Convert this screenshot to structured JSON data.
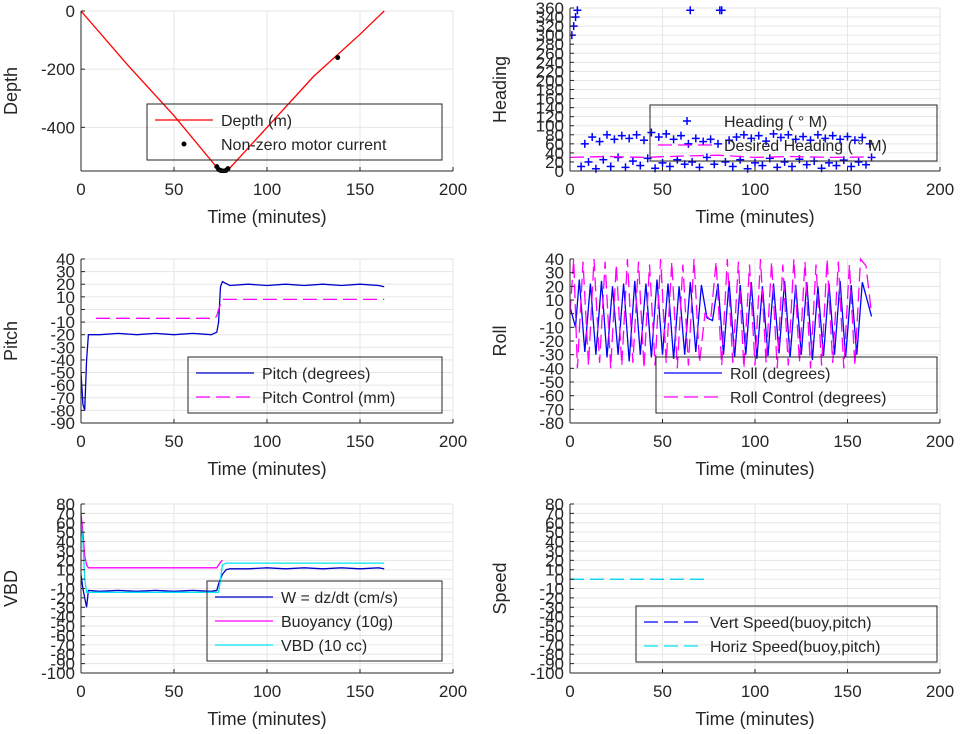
{
  "chart_data": [
    {
      "type": "line",
      "xlabel": "Time (minutes)",
      "ylabel": "Depth",
      "xlim": [
        0,
        200
      ],
      "ylim": [
        -550,
        0
      ],
      "xticks": [
        0,
        50,
        100,
        150,
        200
      ],
      "yticks": [
        -400,
        -200,
        0
      ],
      "grid": true,
      "legend_position": "bottom-right",
      "series": [
        {
          "name": "Depth (m)",
          "style": "solid",
          "color": "#ff0000",
          "x": [
            0,
            25,
            50,
            74,
            77,
            80,
            100,
            125,
            150,
            163
          ],
          "y": [
            0,
            -185,
            -360,
            -545,
            -548,
            -540,
            -400,
            -225,
            -80,
            0
          ]
        },
        {
          "name": "Non-zero motor current",
          "style": "dots",
          "color": "#000000",
          "x": [
            73,
            74,
            75,
            76,
            77,
            78,
            79,
            138
          ],
          "y": [
            -535,
            -545,
            -548,
            -550,
            -550,
            -548,
            -542,
            -160
          ]
        }
      ]
    },
    {
      "type": "line",
      "xlabel": "Time (minutes)",
      "ylabel": "Heading",
      "xlim": [
        0,
        200
      ],
      "ylim": [
        0,
        360
      ],
      "xticks": [
        0,
        50,
        100,
        150,
        200
      ],
      "yticks": [
        0,
        20,
        40,
        60,
        80,
        100,
        120,
        140,
        160,
        180,
        200,
        220,
        240,
        260,
        280,
        300,
        320,
        340,
        360
      ],
      "grid": true,
      "legend_position": "right",
      "series": [
        {
          "name": "Heading (   ° M)",
          "style": "plus",
          "color": "#0000ff",
          "x": [
            1,
            2,
            3,
            4,
            6,
            8,
            10,
            12,
            14,
            16,
            18,
            20,
            22,
            24,
            26,
            28,
            30,
            32,
            34,
            36,
            38,
            40,
            42,
            44,
            46,
            48,
            50,
            52,
            54,
            56,
            58,
            60,
            62,
            64,
            65,
            66,
            68,
            70,
            72,
            74,
            76,
            78,
            80,
            81,
            82,
            84,
            86,
            88,
            90,
            92,
            94,
            96,
            98,
            100,
            102,
            104,
            106,
            108,
            110,
            112,
            114,
            116,
            118,
            120,
            122,
            124,
            126,
            128,
            130,
            132,
            134,
            136,
            138,
            140,
            142,
            144,
            146,
            148,
            150,
            152,
            154,
            156,
            158,
            160,
            162,
            163
          ],
          "y": [
            300,
            320,
            340,
            355,
            10,
            60,
            20,
            75,
            5,
            65,
            25,
            80,
            10,
            70,
            30,
            78,
            8,
            72,
            22,
            80,
            12,
            68,
            28,
            85,
            6,
            75,
            18,
            82,
            10,
            70,
            25,
            78,
            15,
            60,
            355,
            20,
            72,
            8,
            65,
            30,
            70,
            15,
            60,
            355,
            355,
            20,
            68,
            10,
            75,
            25,
            80,
            5,
            72,
            18,
            78,
            12,
            66,
            28,
            82,
            8,
            74,
            20,
            80,
            10,
            70,
            26,
            76,
            14,
            68,
            22,
            80,
            6,
            72,
            18,
            78,
            12,
            70,
            24,
            76,
            10,
            68,
            20,
            74,
            14,
            60,
            30
          ]
        },
        {
          "name": "Desired Heading (   ° M)",
          "style": "dashed",
          "color": "#ff00ff",
          "x": [
            0,
            20,
            40,
            60,
            80,
            100,
            120,
            140,
            160,
            163
          ],
          "y": [
            30,
            32,
            30,
            33,
            35,
            30,
            32,
            30,
            31,
            30
          ]
        }
      ]
    },
    {
      "type": "line",
      "xlabel": "Time (minutes)",
      "ylabel": "Pitch",
      "xlim": [
        0,
        200
      ],
      "ylim": [
        -90,
        40
      ],
      "xticks": [
        0,
        50,
        100,
        150,
        200
      ],
      "yticks": [
        -90,
        -80,
        -70,
        -60,
        -50,
        -40,
        -30,
        -20,
        -10,
        0,
        10,
        20,
        30,
        40
      ],
      "grid": true,
      "legend_position": "bottom-right",
      "series": [
        {
          "name": "Pitch (degrees)",
          "style": "solid",
          "color": "#0000cc",
          "x": [
            0,
            1,
            2,
            3,
            4,
            10,
            20,
            30,
            40,
            50,
            60,
            70,
            73,
            74,
            75,
            76,
            80,
            90,
            100,
            110,
            120,
            130,
            140,
            150,
            160,
            163
          ],
          "y": [
            -50,
            -75,
            -80,
            -40,
            -20,
            -20,
            -19,
            -20,
            -19,
            -20,
            -19,
            -20,
            -18,
            -10,
            18,
            22,
            19,
            20,
            19,
            20,
            19,
            20,
            19,
            20,
            19,
            18
          ]
        },
        {
          "name": "Pitch Control (mm)",
          "style": "dashed",
          "color": "#ff00ff",
          "x": [
            8,
            72,
            73,
            74,
            76,
            163
          ],
          "y": [
            -7,
            -7,
            -5,
            0,
            8,
            8
          ]
        }
      ]
    },
    {
      "type": "line",
      "xlabel": "Time (minutes)",
      "ylabel": "Roll",
      "xlim": [
        0,
        200
      ],
      "ylim": [
        -80,
        40
      ],
      "xticks": [
        0,
        50,
        100,
        150,
        200
      ],
      "yticks": [
        -80,
        -70,
        -60,
        -50,
        -40,
        -30,
        -20,
        -10,
        0,
        10,
        20,
        30,
        40
      ],
      "grid": true,
      "legend_position": "bottom-right",
      "series": [
        {
          "name": "Roll (degrees)",
          "style": "solid",
          "color": "#0000ff",
          "x": [
            0,
            3,
            5,
            8,
            11,
            14,
            17,
            20,
            23,
            26,
            29,
            32,
            35,
            38,
            41,
            44,
            47,
            50,
            53,
            56,
            59,
            62,
            65,
            68,
            71,
            74,
            77,
            80,
            83,
            86,
            89,
            92,
            95,
            98,
            101,
            104,
            107,
            110,
            113,
            116,
            119,
            122,
            125,
            128,
            131,
            134,
            137,
            140,
            143,
            146,
            149,
            152,
            155,
            158,
            161,
            163
          ],
          "y": [
            5,
            -10,
            25,
            -28,
            22,
            -30,
            24,
            -32,
            20,
            -30,
            22,
            -35,
            24,
            -30,
            22,
            -32,
            25,
            -30,
            22,
            -33,
            20,
            -30,
            23,
            -28,
            21,
            -3,
            -5,
            22,
            -30,
            24,
            -32,
            21,
            -30,
            23,
            -33,
            20,
            -31,
            22,
            -29,
            24,
            -32,
            21,
            -30,
            23,
            -34,
            20,
            -31,
            22,
            -30,
            24,
            -32,
            21,
            -30,
            23,
            8,
            -2
          ]
        },
        {
          "name": "Roll Control (degrees)",
          "style": "dashed",
          "color": "#ff00ff",
          "x": [
            0,
            2,
            4,
            7,
            10,
            13,
            16,
            19,
            22,
            25,
            28,
            31,
            34,
            37,
            40,
            43,
            46,
            49,
            52,
            55,
            58,
            61,
            64,
            67,
            70,
            73,
            76,
            79,
            82,
            85,
            88,
            91,
            94,
            97,
            100,
            103,
            106,
            109,
            112,
            115,
            118,
            121,
            124,
            127,
            130,
            133,
            136,
            139,
            142,
            145,
            148,
            151,
            154,
            157,
            160,
            163
          ],
          "y": [
            0,
            40,
            -40,
            38,
            -38,
            40,
            -36,
            38,
            -40,
            36,
            -38,
            40,
            -36,
            38,
            -40,
            36,
            -38,
            40,
            -36,
            38,
            -40,
            36,
            -38,
            40,
            -36,
            0,
            -5,
            38,
            -38,
            40,
            -36,
            38,
            -40,
            36,
            -38,
            40,
            -36,
            38,
            -40,
            36,
            -38,
            40,
            -36,
            38,
            -40,
            36,
            -38,
            40,
            -36,
            38,
            -40,
            36,
            -38,
            40,
            35,
            0
          ]
        }
      ]
    },
    {
      "type": "line",
      "xlabel": "Time (minutes)",
      "ylabel": "VBD",
      "xlim": [
        0,
        200
      ],
      "ylim": [
        -100,
        80
      ],
      "xticks": [
        0,
        50,
        100,
        150,
        200
      ],
      "yticks": [
        -100,
        -90,
        -80,
        -70,
        -60,
        -50,
        -40,
        -30,
        -20,
        -10,
        0,
        10,
        20,
        30,
        40,
        50,
        60,
        70,
        80
      ],
      "grid": true,
      "legend_position": "bottom-right",
      "series": [
        {
          "name": "W = dz/dt (cm/s)",
          "style": "solid",
          "color": "#0000cc",
          "x": [
            0,
            1,
            2,
            3,
            4,
            10,
            20,
            30,
            40,
            50,
            60,
            70,
            73,
            74,
            75,
            76,
            78,
            80,
            90,
            100,
            110,
            120,
            130,
            140,
            150,
            160,
            163
          ],
          "y": [
            5,
            -10,
            -20,
            -30,
            -12,
            -13,
            -12,
            -13,
            -12,
            -13,
            -12,
            -13,
            -12,
            -5,
            0,
            5,
            10,
            11,
            11,
            12,
            11,
            12,
            11,
            12,
            11,
            12,
            11
          ]
        },
        {
          "name": "Buoyancy (10g)",
          "style": "solid",
          "color": "#ff00ff",
          "x": [
            0,
            1,
            2,
            3,
            4,
            73,
            74,
            75,
            76
          ],
          "y": [
            70,
            50,
            25,
            15,
            12,
            12,
            15,
            18,
            20
          ]
        },
        {
          "name": "VBD (10 cc)",
          "style": "solid",
          "color": "#00e5ee",
          "x": [
            0,
            1,
            2,
            3,
            4,
            74,
            75,
            76,
            78,
            163
          ],
          "y": [
            60,
            40,
            0,
            -14,
            -14,
            -14,
            0,
            15,
            17,
            17
          ]
        }
      ]
    },
    {
      "type": "line",
      "xlabel": "Time (minutes)",
      "ylabel": "Speed",
      "xlim": [
        0,
        200
      ],
      "ylim": [
        -100,
        80
      ],
      "xticks": [
        0,
        50,
        100,
        150,
        200
      ],
      "yticks": [
        -100,
        -90,
        -80,
        -70,
        -60,
        -50,
        -40,
        -30,
        -20,
        -10,
        0,
        10,
        20,
        30,
        40,
        50,
        60,
        70,
        80
      ],
      "grid": true,
      "legend_position": "bottom-right",
      "series": [
        {
          "name": "Vert Speed(buoy,pitch)",
          "style": "dashed",
          "color": "#0000ff",
          "x": [
            0,
            75
          ],
          "y": [
            0,
            0
          ]
        },
        {
          "name": "Horiz Speed(buoy,pitch)",
          "style": "dashed",
          "color": "#00e5ee",
          "x": [
            0,
            75
          ],
          "y": [
            0,
            0
          ]
        }
      ]
    }
  ]
}
